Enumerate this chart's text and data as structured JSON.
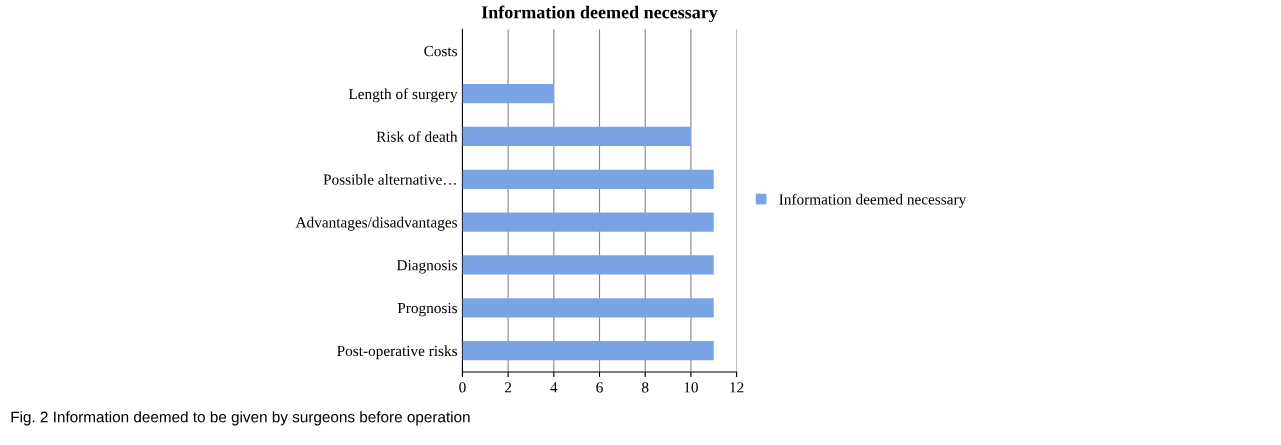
{
  "chart_data": {
    "type": "bar",
    "orientation": "horizontal",
    "title": "Information deemed necessary",
    "categories": [
      "Costs",
      "Length of surgery",
      "Risk of death",
      "Possible alternative…",
      "Advantages/disadvantages",
      "Diagnosis",
      "Prognosis",
      "Post-operative risks"
    ],
    "series": [
      {
        "name": "Information deemed necessary",
        "color": "#7aa3e5",
        "values": [
          0,
          4,
          10,
          11,
          11,
          11,
          11,
          11
        ]
      }
    ],
    "xlim": [
      0,
      12
    ],
    "xticks": [
      0,
      2,
      4,
      6,
      8,
      10,
      12
    ],
    "grid": "x",
    "legend": "right",
    "annotations": [
      "Fig. 2 Information deemed to be given by surgeons before operation"
    ]
  }
}
